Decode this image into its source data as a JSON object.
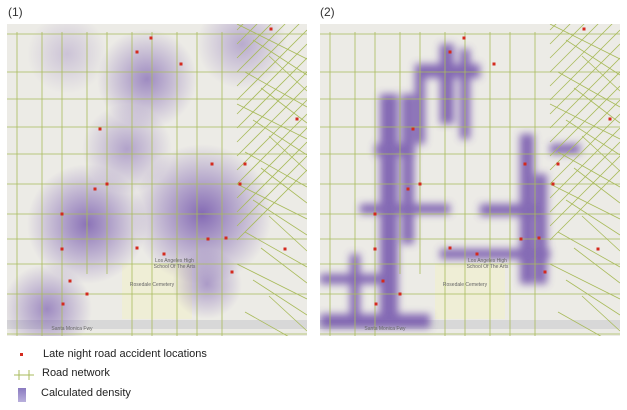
{
  "panels": [
    {
      "label": "(1)",
      "density_style": "smooth kernel"
    },
    {
      "label": "(2)",
      "density_style": "road-segment"
    }
  ],
  "map_labels": {
    "freeway": "Santa Monica Fwy",
    "cemetery": "Rosedale Cemetery",
    "school": "Los Angeles High School Of The Arts"
  },
  "legend": {
    "accidents": "Late night road accident locations",
    "roads": "Road network",
    "density": "Calculated density"
  },
  "colors": {
    "accident": "#d42a1e",
    "road": "#a9bb5c",
    "density": "#6a4aa8",
    "background": "#ecebe6"
  }
}
